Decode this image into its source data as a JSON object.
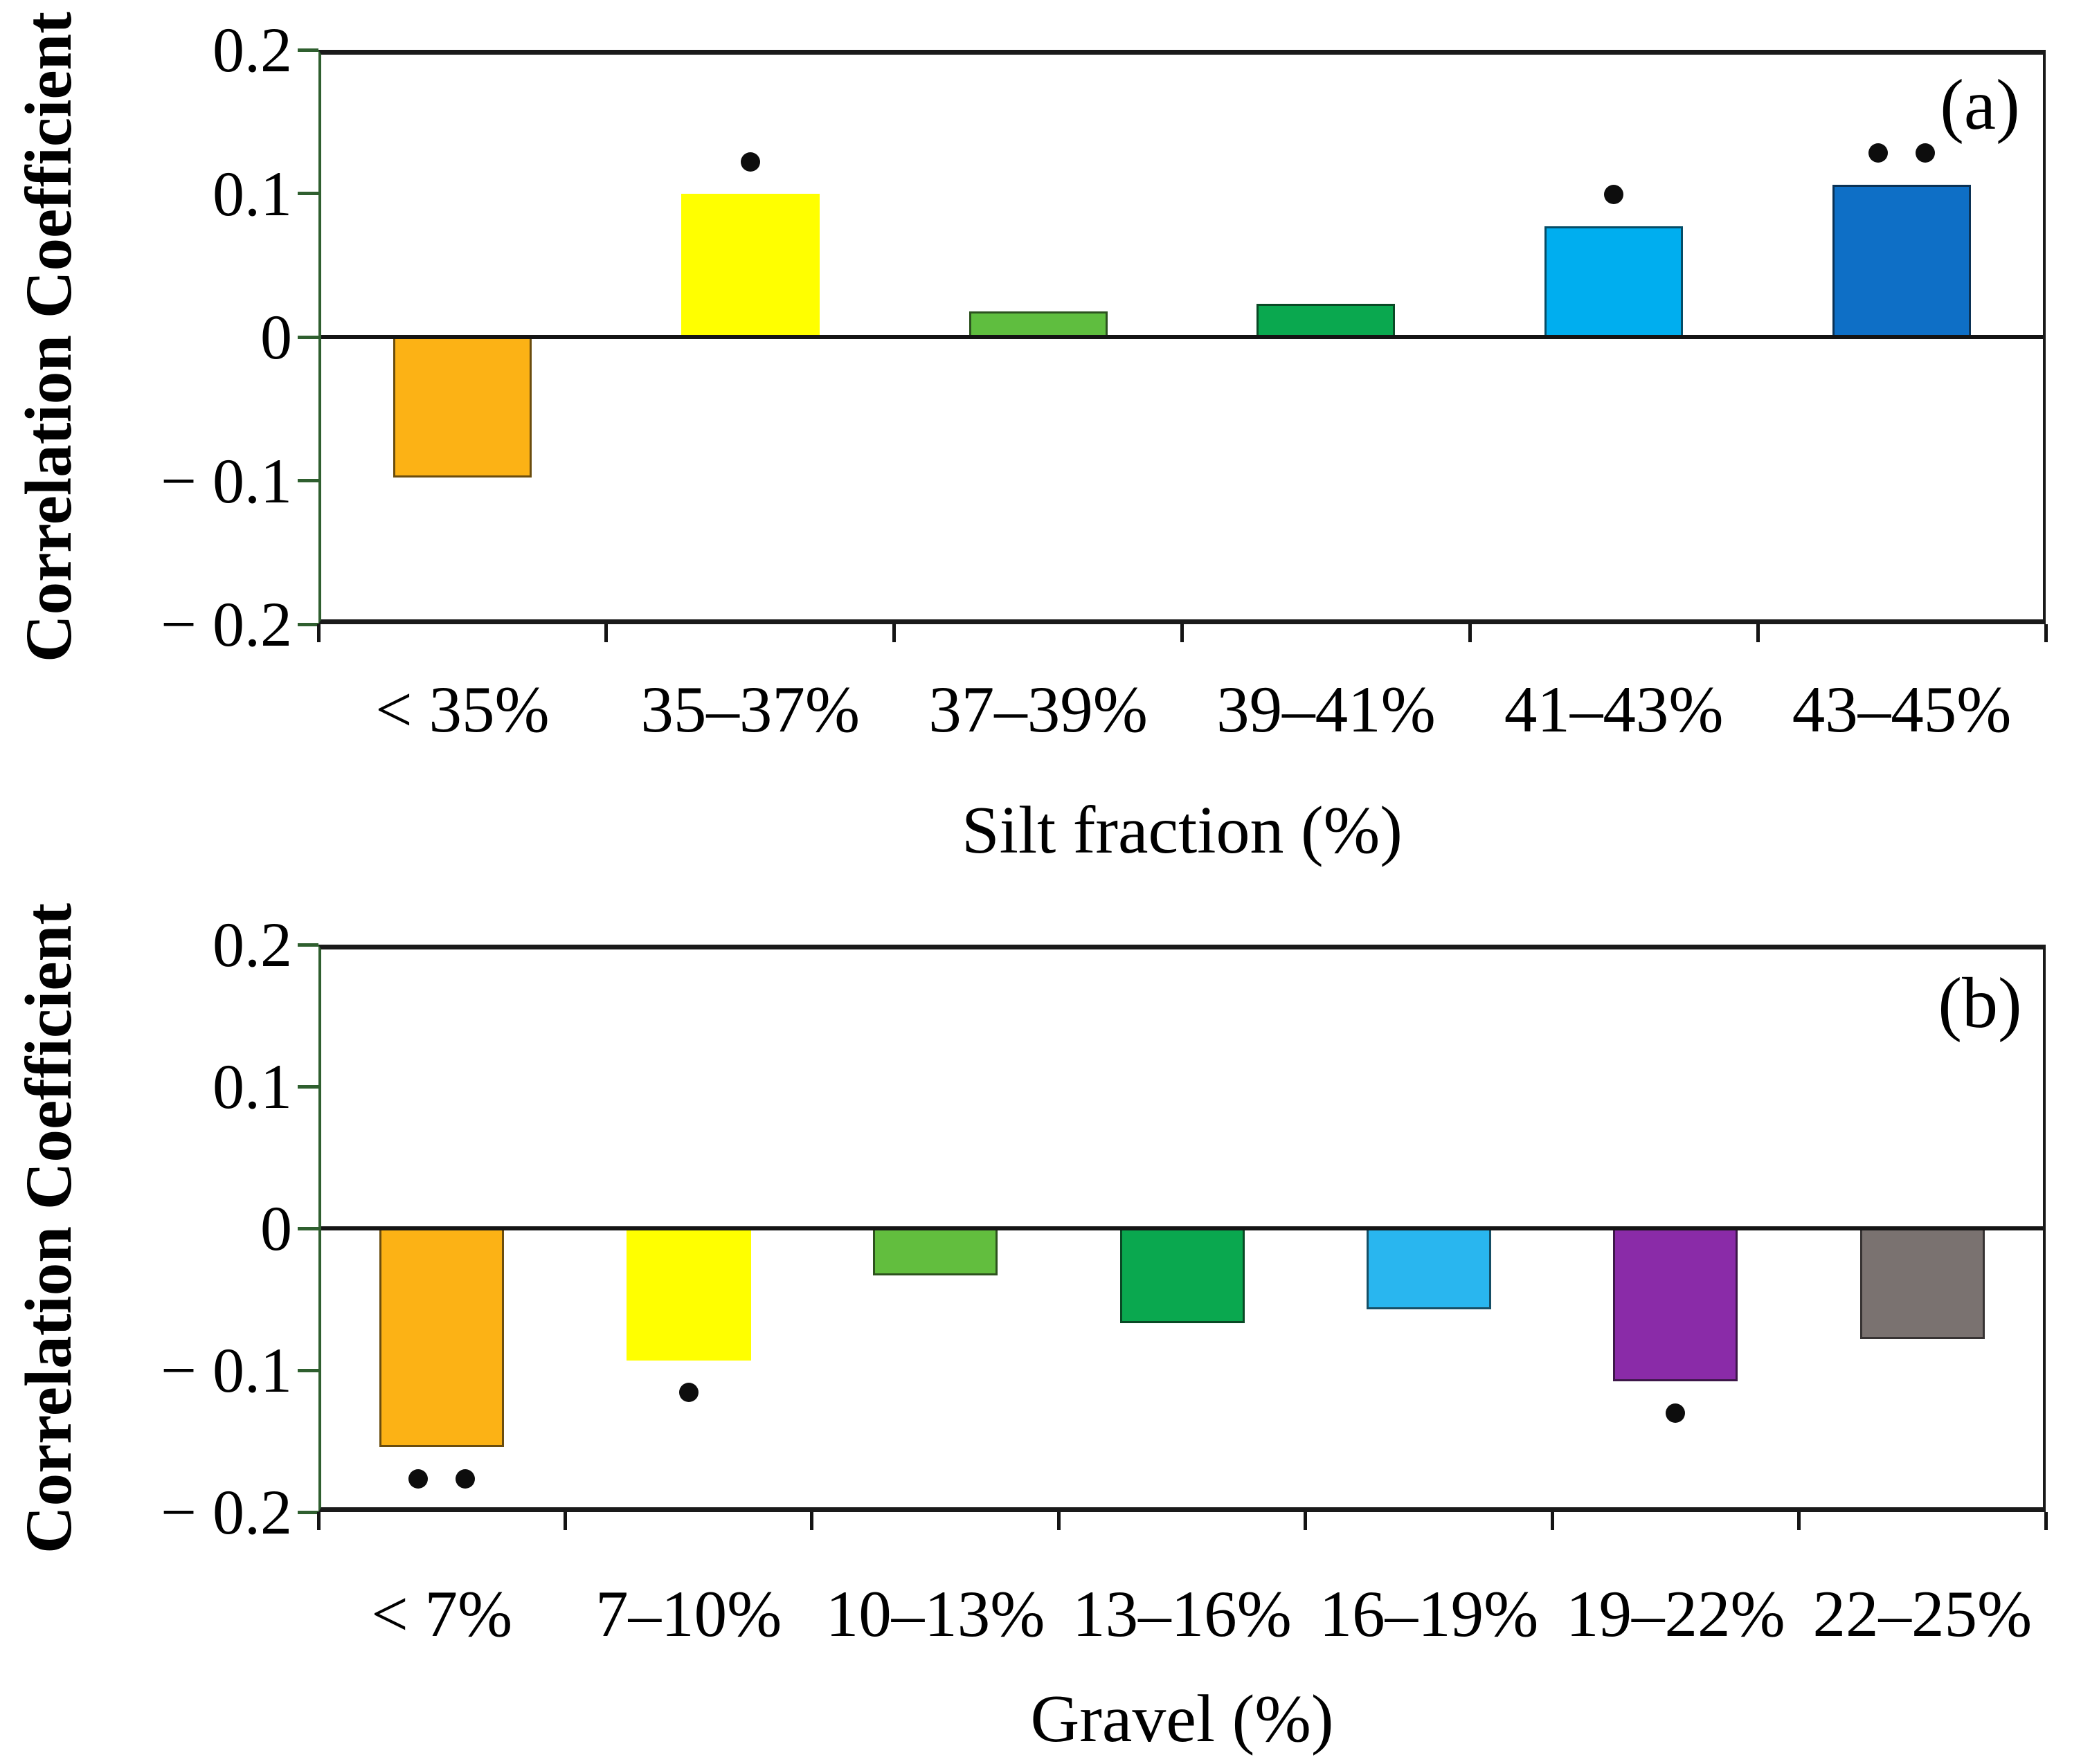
{
  "figure": {
    "background": "#FFFFFF",
    "frame_color": "#1A1A1A",
    "axis_color": "#2F5F2F",
    "marker_color": "#0D0D0D"
  },
  "chart_data": [
    {
      "type": "bar",
      "panel_label": "(a)",
      "title": "",
      "xlabel": "Silt fraction (%)",
      "ylabel": "Correlation Coefficient",
      "ylim": [
        -0.2,
        0.2
      ],
      "grid": "off",
      "legend": "none",
      "yticks": [
        {
          "value": 0.2,
          "label": "0.2"
        },
        {
          "value": 0.1,
          "label": "0.1"
        },
        {
          "value": 0,
          "label": "0"
        },
        {
          "value": -0.1,
          "label": "− 0.1"
        },
        {
          "value": -0.2,
          "label": "− 0.2"
        }
      ],
      "categories": [
        "< 35%",
        "35–37%",
        "37–39%",
        "39–41%",
        "41–43%",
        "43–45%"
      ],
      "values": [
        -0.098,
        0.1,
        0.018,
        0.023,
        0.077,
        0.106
      ],
      "bar_colors": [
        "#FCB215",
        "#FFFF00",
        "#5FBE3F",
        "#0AA84F",
        "#00AEEF",
        "#0E6FC6"
      ],
      "significance_stars": [
        0,
        1,
        0,
        0,
        1,
        2
      ]
    },
    {
      "type": "bar",
      "panel_label": "(b)",
      "title": "",
      "xlabel": "Gravel (%)",
      "ylabel": "Correlation Coefficient",
      "ylim": [
        -0.2,
        0.2
      ],
      "grid": "off",
      "legend": "none",
      "yticks": [
        {
          "value": 0.2,
          "label": "0.2"
        },
        {
          "value": 0.1,
          "label": "0.1"
        },
        {
          "value": 0,
          "label": "0"
        },
        {
          "value": -0.1,
          "label": "− 0.1"
        },
        {
          "value": -0.2,
          "label": "− 0.2"
        }
      ],
      "categories": [
        "< 7%",
        "7–10%",
        "10–13%",
        "13–16%",
        "16–19%",
        "19–22%",
        "22–25%"
      ],
      "values": [
        -0.154,
        -0.093,
        -0.033,
        -0.067,
        -0.057,
        -0.108,
        -0.078
      ],
      "bar_colors": [
        "#FCB215",
        "#FFFF00",
        "#62BE3E",
        "#0AA84F",
        "#29B6EF",
        "#8A2BA8",
        "#7A7270"
      ],
      "significance_stars": [
        2,
        1,
        0,
        0,
        0,
        1,
        0
      ]
    }
  ]
}
